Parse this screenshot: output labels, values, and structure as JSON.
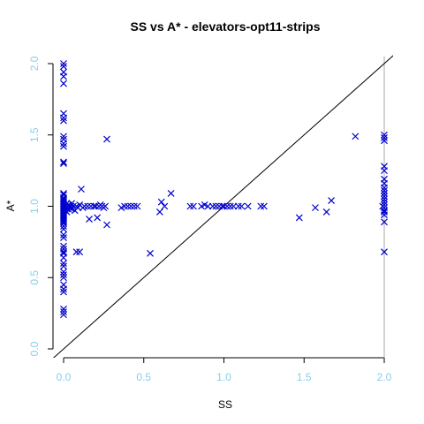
{
  "chart_data": {
    "type": "scatter",
    "title": "SS vs A* - elevators-opt11-strips",
    "xlabel": "SS",
    "ylabel": "A*",
    "xlim": [
      0,
      2
    ],
    "ylim": [
      0,
      2
    ],
    "x_ticks": [
      "0.0",
      "0.5",
      "1.0",
      "1.5",
      "2.0"
    ],
    "y_ticks": [
      "0.0",
      "0.5",
      "1.0",
      "1.5",
      "2.0"
    ],
    "marker": "x",
    "grid": false,
    "reference_line": "y = x",
    "vertical_reference_at_x": 2.0,
    "colors": {
      "points": "#0000cd",
      "ticks": "#87ceeb",
      "axes": "#000000",
      "reference_line": "#000000",
      "vertical_reference": "#aaaaaa"
    },
    "points": [
      [
        0.0,
        2.0
      ],
      [
        0.0,
        1.98
      ],
      [
        0.0,
        1.94
      ],
      [
        0.0,
        1.91
      ],
      [
        0.0,
        1.86
      ],
      [
        0.0,
        1.65
      ],
      [
        0.0,
        1.62
      ],
      [
        0.0,
        1.6
      ],
      [
        0.0,
        1.49
      ],
      [
        0.0,
        1.47
      ],
      [
        0.0,
        1.44
      ],
      [
        0.0,
        1.42
      ],
      [
        0.0,
        1.31
      ],
      [
        0.0,
        1.3
      ],
      [
        0.0,
        1.09
      ],
      [
        0.0,
        1.08
      ],
      [
        0.0,
        1.06
      ],
      [
        0.0,
        1.05
      ],
      [
        0.0,
        1.04
      ],
      [
        0.0,
        1.03
      ],
      [
        0.0,
        1.02
      ],
      [
        0.0,
        1.01
      ],
      [
        0.0,
        1.0
      ],
      [
        0.0,
        0.99
      ],
      [
        0.0,
        0.98
      ],
      [
        0.0,
        0.97
      ],
      [
        0.0,
        0.96
      ],
      [
        0.0,
        0.95
      ],
      [
        0.0,
        0.94
      ],
      [
        0.0,
        0.93
      ],
      [
        0.0,
        0.92
      ],
      [
        0.0,
        0.91
      ],
      [
        0.0,
        0.9
      ],
      [
        0.0,
        0.89
      ],
      [
        0.0,
        0.88
      ],
      [
        0.0,
        0.86
      ],
      [
        0.0,
        0.84
      ],
      [
        0.0,
        0.8
      ],
      [
        0.0,
        0.78
      ],
      [
        0.0,
        0.72
      ],
      [
        0.0,
        0.7
      ],
      [
        0.0,
        0.68
      ],
      [
        0.0,
        0.67
      ],
      [
        0.0,
        0.64
      ],
      [
        0.0,
        0.6
      ],
      [
        0.0,
        0.58
      ],
      [
        0.0,
        0.54
      ],
      [
        0.0,
        0.52
      ],
      [
        0.0,
        0.5
      ],
      [
        0.0,
        0.45
      ],
      [
        0.0,
        0.42
      ],
      [
        0.0,
        0.4
      ],
      [
        0.0,
        0.28
      ],
      [
        0.0,
        0.26
      ],
      [
        0.0,
        0.24
      ],
      [
        0.01,
        1.0
      ],
      [
        0.01,
        0.97
      ],
      [
        0.02,
        1.02
      ],
      [
        0.02,
        0.99
      ],
      [
        0.02,
        0.96
      ],
      [
        0.03,
        1.01
      ],
      [
        0.03,
        0.98
      ],
      [
        0.04,
        1.0
      ],
      [
        0.04,
        0.99
      ],
      [
        0.05,
        1.02
      ],
      [
        0.05,
        0.98
      ],
      [
        0.06,
        1.0
      ],
      [
        0.07,
        0.97
      ],
      [
        0.08,
        1.0
      ],
      [
        0.08,
        0.68
      ],
      [
        0.09,
        0.99
      ],
      [
        0.1,
        0.68
      ],
      [
        0.1,
        1.01
      ],
      [
        0.11,
        1.12
      ],
      [
        0.12,
        0.99
      ],
      [
        0.13,
        1.0
      ],
      [
        0.15,
        1.0
      ],
      [
        0.16,
        0.91
      ],
      [
        0.17,
        1.0
      ],
      [
        0.19,
        1.0
      ],
      [
        0.2,
        1.0
      ],
      [
        0.21,
        0.92
      ],
      [
        0.22,
        1.0
      ],
      [
        0.23,
        1.01
      ],
      [
        0.24,
        1.0
      ],
      [
        0.25,
        0.99
      ],
      [
        0.26,
        1.0
      ],
      [
        0.27,
        1.47
      ],
      [
        0.27,
        0.87
      ],
      [
        0.36,
        0.99
      ],
      [
        0.38,
        1.0
      ],
      [
        0.4,
        1.0
      ],
      [
        0.42,
        1.0
      ],
      [
        0.44,
        1.0
      ],
      [
        0.46,
        1.0
      ],
      [
        0.54,
        0.67
      ],
      [
        0.6,
        0.96
      ],
      [
        0.61,
        1.03
      ],
      [
        0.63,
        1.0
      ],
      [
        0.67,
        1.09
      ],
      [
        0.79,
        1.0
      ],
      [
        0.81,
        1.0
      ],
      [
        0.86,
        1.0
      ],
      [
        0.88,
        1.01
      ],
      [
        0.9,
        1.0
      ],
      [
        0.93,
        1.0
      ],
      [
        0.95,
        1.0
      ],
      [
        0.97,
        1.0
      ],
      [
        0.99,
        1.0
      ],
      [
        1.0,
        1.0
      ],
      [
        1.02,
        1.0
      ],
      [
        1.04,
        1.0
      ],
      [
        1.06,
        1.0
      ],
      [
        1.09,
        1.0
      ],
      [
        1.11,
        1.0
      ],
      [
        1.15,
        1.0
      ],
      [
        1.23,
        1.0
      ],
      [
        1.25,
        1.0
      ],
      [
        1.47,
        0.92
      ],
      [
        1.57,
        0.99
      ],
      [
        1.64,
        0.96
      ],
      [
        1.67,
        1.04
      ],
      [
        1.82,
        1.49
      ],
      [
        1.99,
        1.0
      ],
      [
        2.0,
        1.5
      ],
      [
        2.0,
        1.48
      ],
      [
        2.0,
        1.46
      ],
      [
        2.0,
        1.28
      ],
      [
        2.0,
        1.25
      ],
      [
        2.0,
        1.19
      ],
      [
        2.0,
        1.16
      ],
      [
        2.0,
        1.13
      ],
      [
        2.0,
        1.11
      ],
      [
        2.0,
        1.09
      ],
      [
        2.0,
        1.07
      ],
      [
        2.0,
        1.05
      ],
      [
        2.0,
        1.03
      ],
      [
        2.0,
        1.01
      ],
      [
        2.0,
        0.99
      ],
      [
        2.0,
        0.97
      ],
      [
        2.0,
        0.96
      ],
      [
        2.0,
        0.94
      ],
      [
        2.0,
        0.89
      ],
      [
        2.0,
        0.68
      ]
    ]
  }
}
